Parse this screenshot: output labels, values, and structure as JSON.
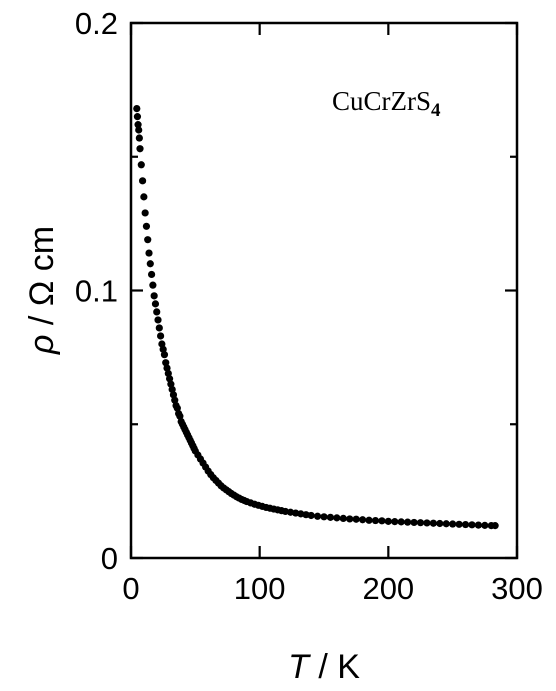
{
  "chart_data": {
    "type": "scatter",
    "title": "",
    "annotation": {
      "main": "CuCrZrS",
      "subscript": "4"
    },
    "xlabel": {
      "symbol": "T",
      "sep": " / ",
      "unit": "K"
    },
    "ylabel": {
      "symbol": "ρ",
      "sep": " / ",
      "unit": "Ω cm"
    },
    "xlim": [
      0,
      300
    ],
    "ylim": [
      0,
      0.2
    ],
    "xticks": [
      0,
      100,
      200,
      300
    ],
    "xtick_labels": [
      "0",
      "100",
      "200",
      "300"
    ],
    "yticks": [
      0,
      0.1,
      0.2
    ],
    "ytick_labels": [
      "0",
      "0.1",
      "0.2"
    ],
    "y_minor_ticks": [
      0.05,
      0.15
    ],
    "grid": false,
    "marker_color": "#000000",
    "series": [
      {
        "x": [
          4.5,
          5,
          5.5,
          6,
          6.5,
          7,
          8,
          9,
          10,
          11,
          12,
          13,
          14,
          15,
          16,
          17,
          18,
          19,
          20,
          21,
          22,
          23,
          24,
          25,
          26,
          27,
          28,
          29,
          30,
          31,
          32,
          33,
          34,
          35,
          36,
          37,
          38,
          39,
          40,
          41,
          42,
          43,
          44,
          45,
          46,
          47,
          48,
          49,
          50,
          52,
          54,
          56,
          58,
          60,
          62,
          64,
          66,
          68,
          70,
          72,
          74,
          76,
          78,
          80,
          82,
          84,
          86,
          88,
          90,
          93,
          96,
          99,
          102,
          105,
          108,
          111,
          114,
          117,
          120,
          124,
          128,
          132,
          136,
          140,
          145,
          150,
          155,
          160,
          165,
          170,
          175,
          180,
          185,
          190,
          195,
          200,
          205,
          210,
          215,
          220,
          225,
          230,
          235,
          240,
          245,
          250,
          255,
          260,
          265,
          270,
          275,
          280,
          283
        ],
        "y": [
          0.168,
          0.165,
          0.162,
          0.16,
          0.157,
          0.153,
          0.147,
          0.141,
          0.135,
          0.129,
          0.124,
          0.119,
          0.114,
          0.11,
          0.106,
          0.102,
          0.098,
          0.095,
          0.092,
          0.089,
          0.086,
          0.083,
          0.08,
          0.078,
          0.076,
          0.073,
          0.071,
          0.069,
          0.067,
          0.065,
          0.063,
          0.061,
          0.059,
          0.057,
          0.056,
          0.054,
          0.053,
          0.051,
          0.05,
          0.049,
          0.048,
          0.047,
          0.046,
          0.045,
          0.044,
          0.043,
          0.042,
          0.041,
          0.04,
          0.0385,
          0.037,
          0.0355,
          0.034,
          0.0325,
          0.0312,
          0.03,
          0.029,
          0.028,
          0.027,
          0.0262,
          0.0255,
          0.0248,
          0.0241,
          0.0235,
          0.0229,
          0.0224,
          0.0219,
          0.0215,
          0.0211,
          0.0206,
          0.0201,
          0.0197,
          0.0193,
          0.0189,
          0.0186,
          0.0183,
          0.018,
          0.0177,
          0.0174,
          0.0171,
          0.0168,
          0.0165,
          0.0162,
          0.0159,
          0.0156,
          0.0154,
          0.0152,
          0.015,
          0.0148,
          0.0146,
          0.0145,
          0.0143,
          0.0141,
          0.014,
          0.0139,
          0.0137,
          0.0136,
          0.0135,
          0.0134,
          0.0133,
          0.0132,
          0.0131,
          0.013,
          0.0129,
          0.0128,
          0.0127,
          0.0126,
          0.0125,
          0.0124,
          0.0123,
          0.0122,
          0.0121,
          0.0121
        ]
      }
    ]
  }
}
